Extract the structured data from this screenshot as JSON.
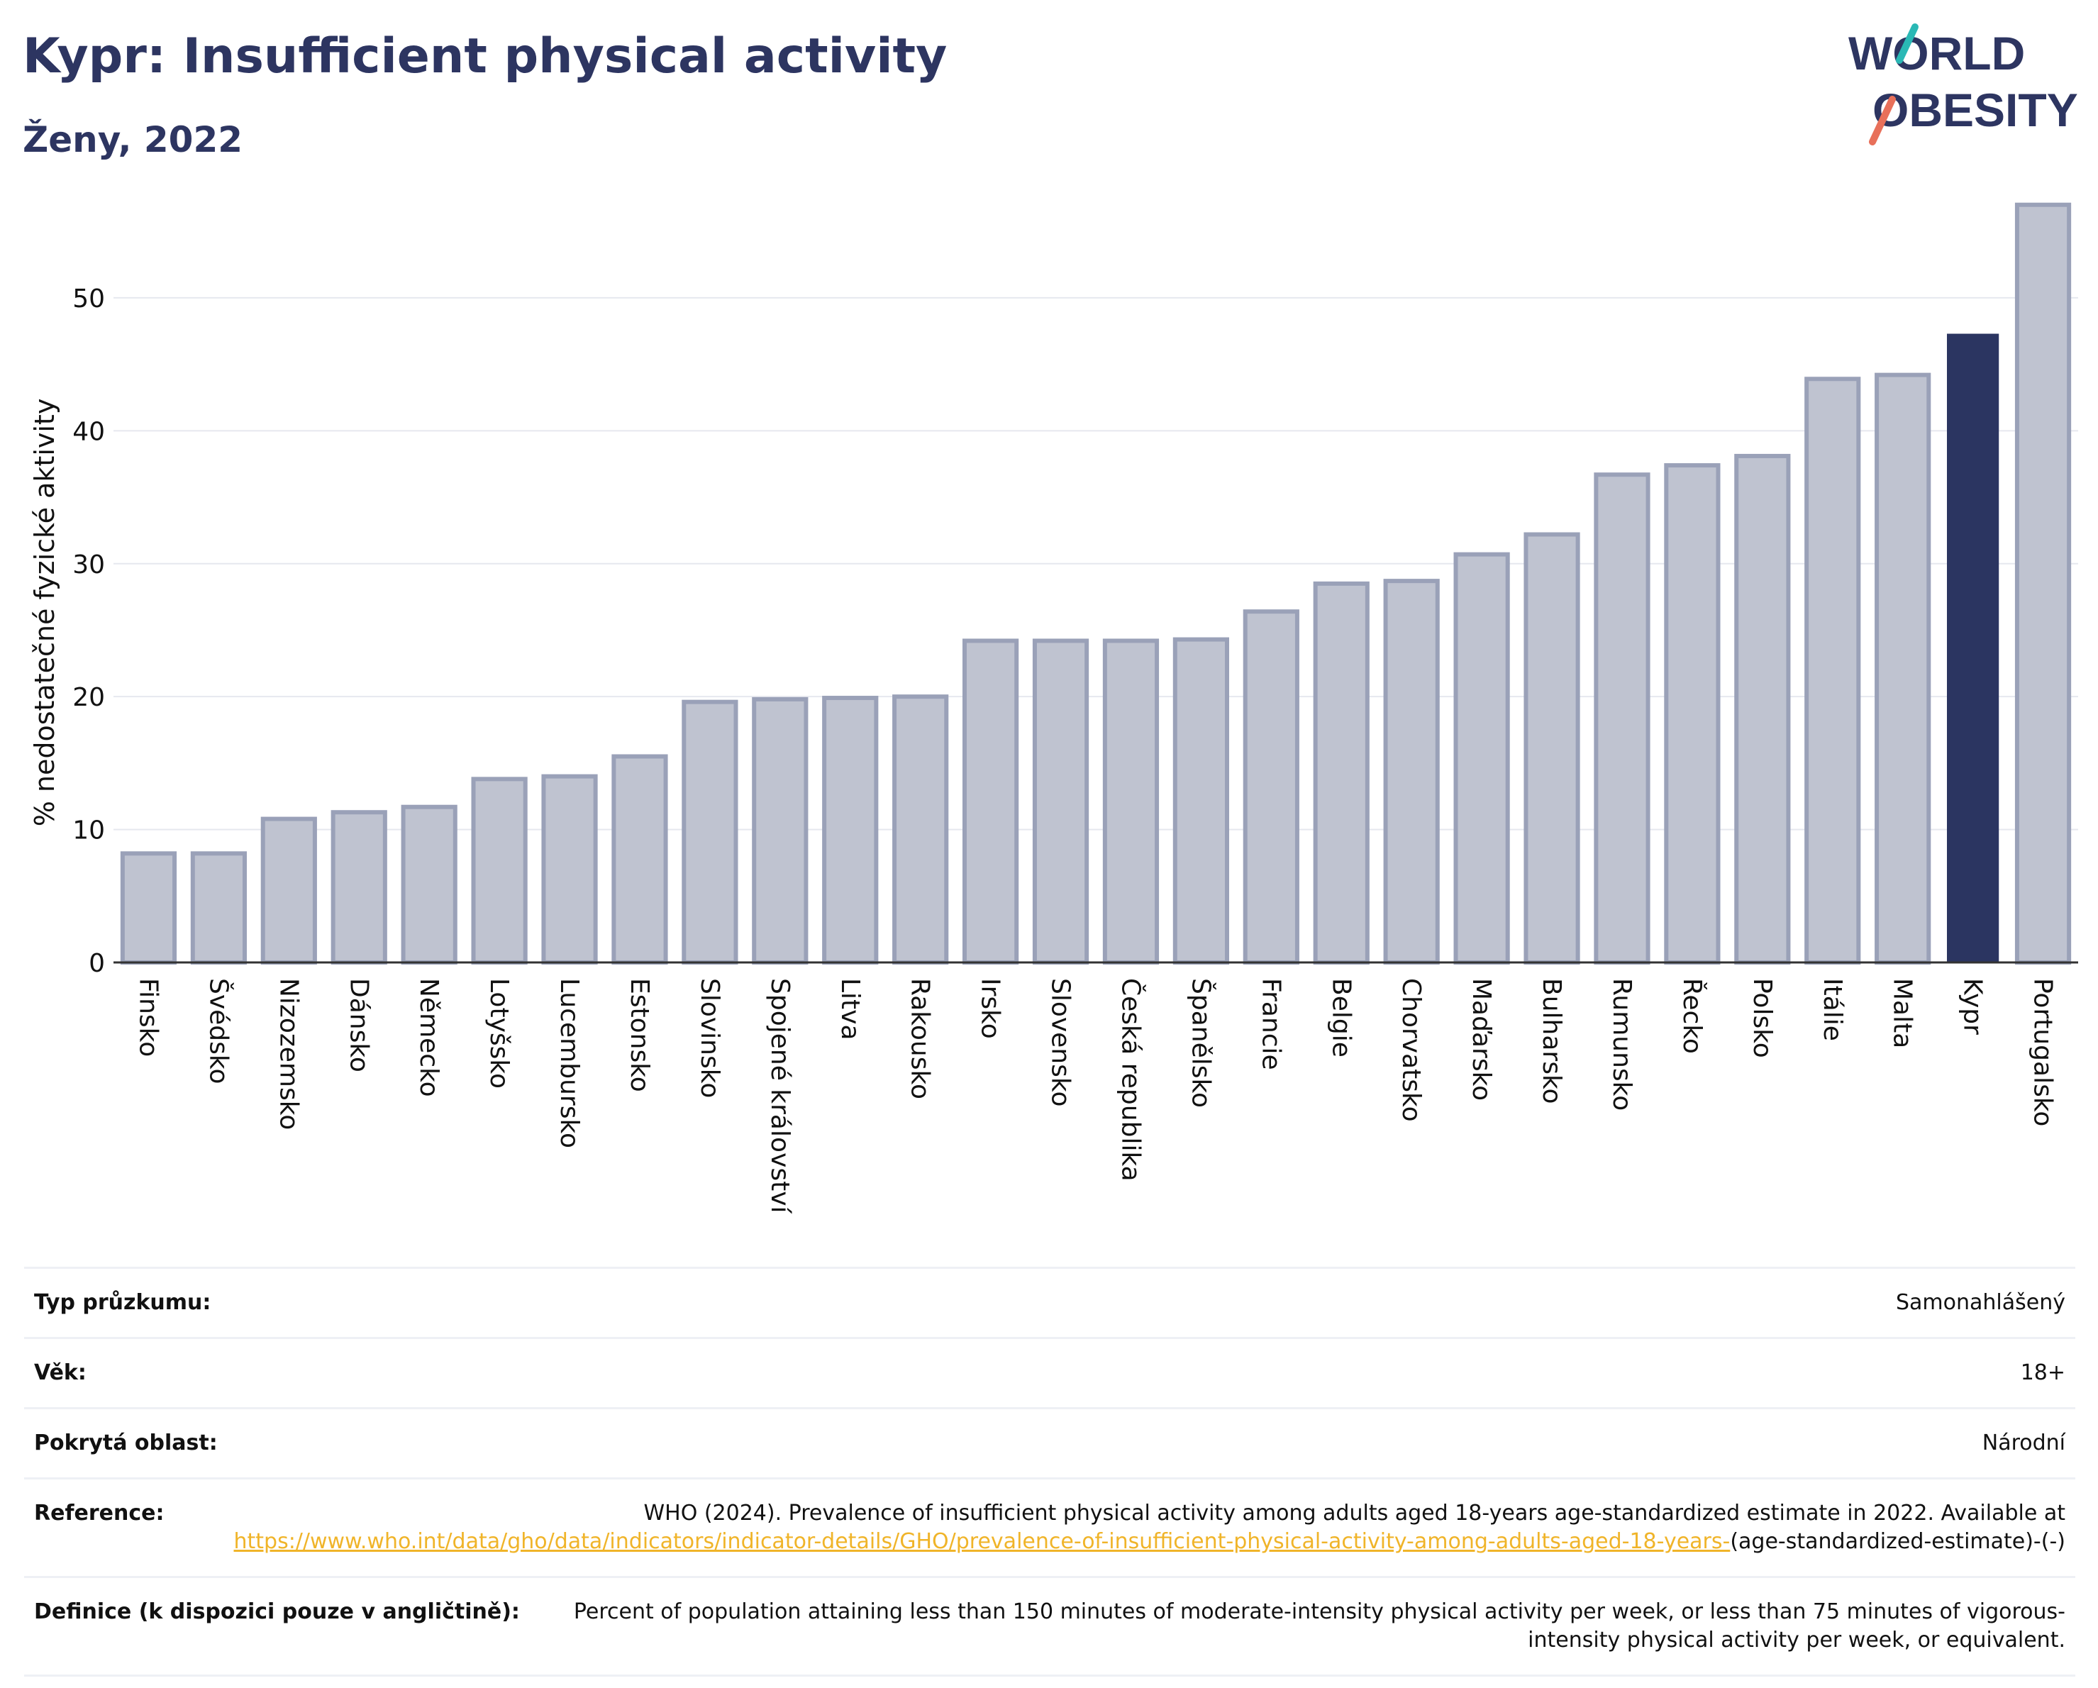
{
  "header": {
    "title": "Kypr: Insufficient physical activity",
    "subtitle": "Ženy, 2022"
  },
  "logo": {
    "line1": "WORLD",
    "line2": "OBESITY"
  },
  "colors": {
    "highlight": "#2b3561",
    "bar_fill": "#bfc3d0",
    "bar_stroke": "#9aa1b8",
    "title": "#2d3561",
    "link": "#f0b429",
    "logo_teal": "#2ab8b5",
    "logo_coral": "#e8705a"
  },
  "chart_data": {
    "type": "bar",
    "title": "",
    "xlabel": "",
    "ylabel": "% nedostatečné fyzické aktivity",
    "ylim": [
      0,
      58
    ],
    "yticks": [
      0,
      10,
      20,
      30,
      40,
      50
    ],
    "grid": true,
    "highlight_category": "Kypr",
    "categories": [
      "Finsko",
      "Švédsko",
      "Nizozemsko",
      "Dánsko",
      "Německo",
      "Lotyšsko",
      "Lucembursko",
      "Estonsko",
      "Slovinsko",
      "Spojené království",
      "Litva",
      "Rakousko",
      "Irsko",
      "Slovensko",
      "Česká republika",
      "Španělsko",
      "Francie",
      "Belgie",
      "Chorvatsko",
      "Maďarsko",
      "Bulharsko",
      "Rumunsko",
      "Řecko",
      "Polsko",
      "Itálie",
      "Malta",
      "Kypr",
      "Portugalsko"
    ],
    "values": [
      8.2,
      8.2,
      10.8,
      11.3,
      11.7,
      13.8,
      14.0,
      15.5,
      19.6,
      19.8,
      19.9,
      20.0,
      24.2,
      24.2,
      24.2,
      24.3,
      26.4,
      28.5,
      28.7,
      30.7,
      32.2,
      36.7,
      37.4,
      38.1,
      43.9,
      44.2,
      47.3,
      57.0
    ]
  },
  "info": {
    "rows": [
      {
        "label": "Typ průzkumu:",
        "value": "Samonahlášený"
      },
      {
        "label": "Věk:",
        "value": "18+"
      },
      {
        "label": "Pokrytá oblast:",
        "value": "Národní"
      }
    ],
    "reference": {
      "label": "Reference:",
      "text": "WHO (2024). Prevalence of insufficient physical activity among adults aged 18-years age-standardized estimate in 2022. Available at",
      "link": "https://www.who.int/data/gho/data/indicators/indicator-details/GHO/prevalence-of-insufficient-physical-activity-among-adults-aged-18-years-",
      "suffix": "(age-standardized-estimate)-(-)"
    },
    "definition": {
      "label": "Definice (k dispozici pouze v angličtině):",
      "value": "Percent of population attaining less than 150 minutes of moderate-intensity physical activity per week, or less than 75 minutes of vigorous-intensity physical activity per week, or equivalent."
    }
  }
}
